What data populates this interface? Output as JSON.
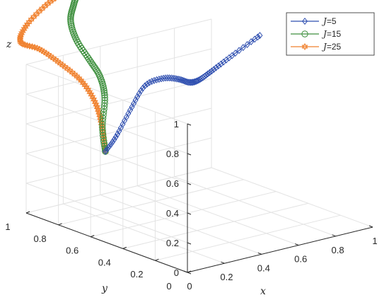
{
  "chart_data": {
    "type": "line3d",
    "xlabel": "x",
    "ylabel": "y",
    "zlabel": "z",
    "xlim": [
      0,
      1
    ],
    "ylim": [
      0,
      1
    ],
    "zlim": [
      0,
      1
    ],
    "xticks": [
      "0",
      "0.2",
      "0.4",
      "0.6",
      "0.8",
      "1"
    ],
    "yticks": [
      "0",
      "0.2",
      "0.4",
      "0.6",
      "0.8",
      "1"
    ],
    "zticks": [
      "0",
      "0.2",
      "0.4",
      "0.6",
      "0.8",
      "1"
    ],
    "grid": true,
    "legend_position": "top-right",
    "legend_label_prefix": "J",
    "series": [
      {
        "name": "=5",
        "color": "#2f4fb0",
        "marker": "diamond",
        "points": [
          {
            "x": 0.21,
            "y": 0.75,
            "z": 0.45
          },
          {
            "x": 0.24,
            "y": 0.72,
            "z": 0.55
          },
          {
            "x": 0.3,
            "y": 0.7,
            "z": 0.72
          },
          {
            "x": 0.38,
            "y": 0.7,
            "z": 0.86
          },
          {
            "x": 0.48,
            "y": 0.7,
            "z": 0.88
          },
          {
            "x": 0.56,
            "y": 0.7,
            "z": 0.85
          },
          {
            "x": 0.62,
            "y": 0.7,
            "z": 0.81
          },
          {
            "x": 0.67,
            "y": 0.7,
            "z": 0.81
          },
          {
            "x": 0.74,
            "y": 0.7,
            "z": 0.85
          },
          {
            "x": 0.85,
            "y": 0.7,
            "z": 0.92
          },
          {
            "x": 1.0,
            "y": 0.7,
            "z": 1.01
          }
        ]
      },
      {
        "name": "=15",
        "color": "#3d8f3d",
        "marker": "circle",
        "points": [
          {
            "x": 0.21,
            "y": 0.75,
            "z": 0.45
          },
          {
            "x": 0.22,
            "y": 0.78,
            "z": 0.6
          },
          {
            "x": 0.25,
            "y": 0.8,
            "z": 0.78
          },
          {
            "x": 0.26,
            "y": 0.84,
            "z": 0.9
          },
          {
            "x": 0.24,
            "y": 0.88,
            "z": 1.0
          },
          {
            "x": 0.22,
            "y": 0.94,
            "z": 1.12
          },
          {
            "x": 0.24,
            "y": 1.0,
            "z": 1.22
          },
          {
            "x": 0.3,
            "y": 1.05,
            "z": 1.29
          },
          {
            "x": 0.36,
            "y": 1.09,
            "z": 1.35
          }
        ]
      },
      {
        "name": "=25",
        "color": "#f0812e",
        "marker": "hexagram",
        "points": [
          {
            "x": 0.21,
            "y": 0.75,
            "z": 0.45
          },
          {
            "x": 0.2,
            "y": 0.76,
            "z": 0.62
          },
          {
            "x": 0.18,
            "y": 0.78,
            "z": 0.78
          },
          {
            "x": 0.14,
            "y": 0.82,
            "z": 0.92
          },
          {
            "x": 0.08,
            "y": 0.88,
            "z": 1.03
          },
          {
            "x": 0.02,
            "y": 0.94,
            "z": 1.12
          },
          {
            "x": -0.03,
            "y": 1.0,
            "z": 1.16
          },
          {
            "x": 0.04,
            "y": 1.04,
            "z": 1.24
          },
          {
            "x": 0.2,
            "y": 1.08,
            "z": 1.33
          },
          {
            "x": 0.34,
            "y": 1.1,
            "z": 1.37
          }
        ]
      }
    ]
  }
}
